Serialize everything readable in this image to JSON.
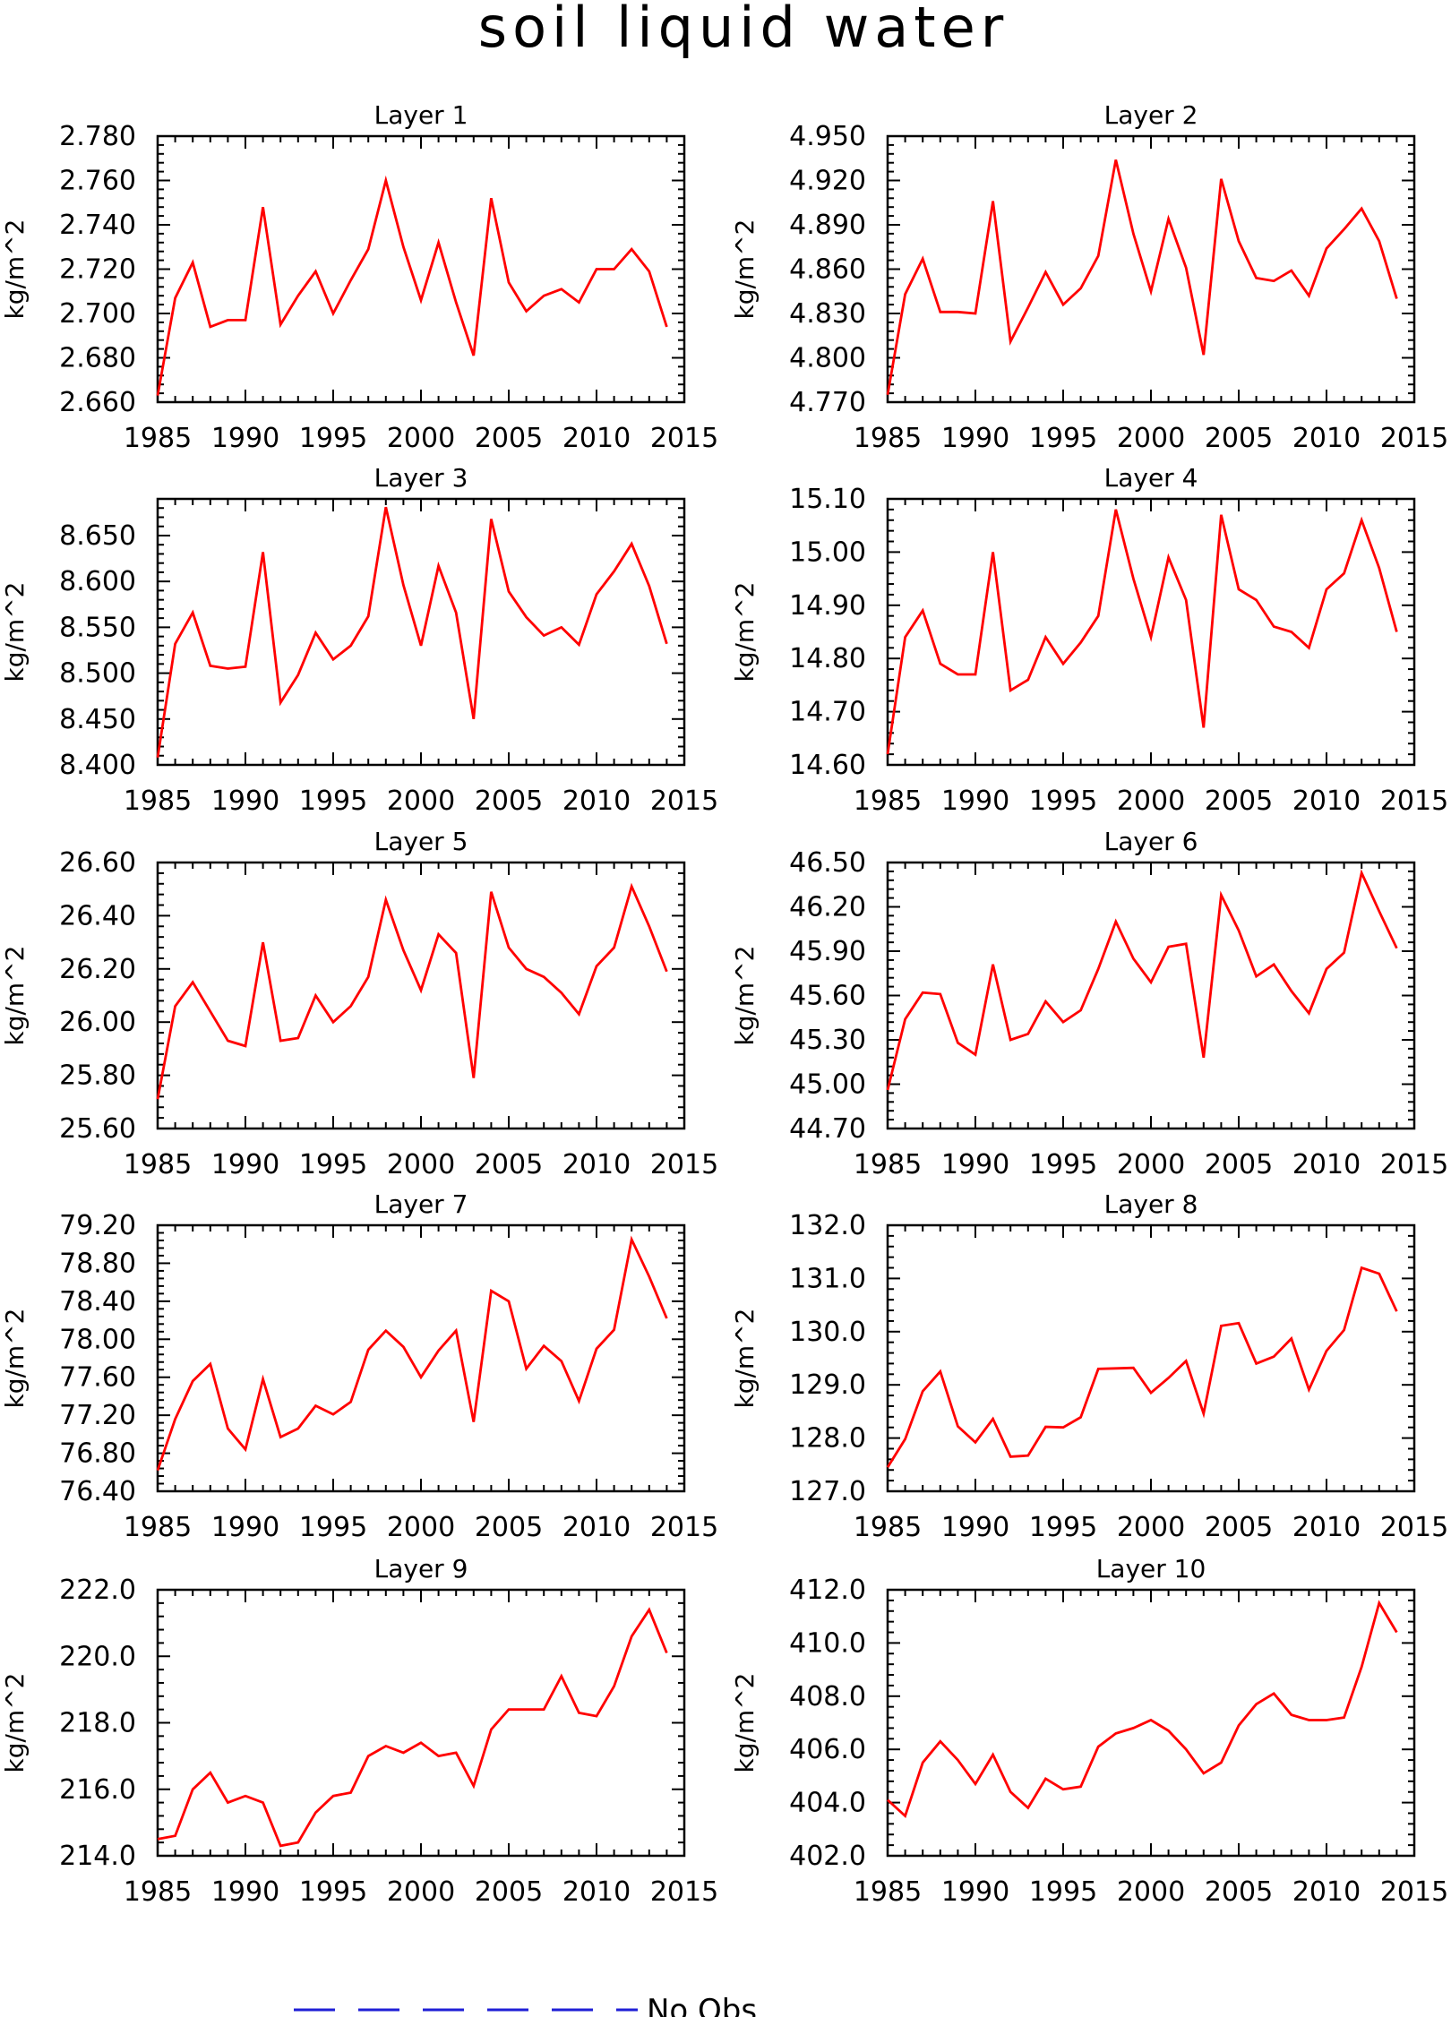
{
  "title": "soil liquid water",
  "legend": {
    "label": "No Obs",
    "color": "#1f1fd6"
  },
  "line_color": "#ff0000",
  "chart_data": [
    {
      "type": "line",
      "title": "Layer 1",
      "ylabel": "kg/m^2",
      "xlim": [
        1985,
        2015
      ],
      "x_ticks": [
        1985,
        1990,
        1995,
        2000,
        2005,
        2010,
        2015
      ],
      "ylim": [
        2.66,
        2.78
      ],
      "y_ticks": [
        "2.660",
        "2.680",
        "2.700",
        "2.720",
        "2.740",
        "2.760",
        "2.780"
      ],
      "x": [
        1985,
        1986,
        1987,
        1988,
        1989,
        1990,
        1991,
        1992,
        1993,
        1994,
        1995,
        1996,
        1997,
        1998,
        1999,
        2000,
        2001,
        2002,
        2003,
        2004,
        2005,
        2006,
        2007,
        2008,
        2009,
        2010,
        2011,
        2012,
        2013,
        2014
      ],
      "y": [
        2.663,
        2.707,
        2.723,
        2.694,
        2.697,
        2.697,
        2.748,
        2.695,
        2.708,
        2.719,
        2.7,
        2.715,
        2.729,
        2.76,
        2.73,
        2.706,
        2.732,
        2.705,
        2.681,
        2.752,
        2.714,
        2.701,
        2.708,
        2.711,
        2.705,
        2.72,
        2.72,
        2.729,
        2.719,
        2.694
      ]
    },
    {
      "type": "line",
      "title": "Layer 2",
      "ylabel": "kg/m^2",
      "xlim": [
        1985,
        2015
      ],
      "x_ticks": [
        1985,
        1990,
        1995,
        2000,
        2005,
        2010,
        2015
      ],
      "ylim": [
        4.77,
        4.95
      ],
      "y_ticks": [
        "4.770",
        "4.800",
        "4.830",
        "4.860",
        "4.890",
        "4.920",
        "4.950"
      ],
      "x": [
        1985,
        1986,
        1987,
        1988,
        1989,
        1990,
        1991,
        1992,
        1993,
        1994,
        1995,
        1996,
        1997,
        1998,
        1999,
        2000,
        2001,
        2002,
        2003,
        2004,
        2005,
        2006,
        2007,
        2008,
        2009,
        2010,
        2011,
        2012,
        2013,
        2014
      ],
      "y": [
        4.775,
        4.843,
        4.867,
        4.831,
        4.831,
        4.83,
        4.906,
        4.811,
        4.834,
        4.858,
        4.836,
        4.847,
        4.869,
        4.934,
        4.884,
        4.845,
        4.894,
        4.861,
        4.802,
        4.921,
        4.879,
        4.854,
        4.852,
        4.859,
        4.842,
        4.874,
        4.887,
        4.901,
        4.879,
        4.84
      ]
    },
    {
      "type": "line",
      "title": "Layer 3",
      "ylabel": "kg/m^2",
      "xlim": [
        1985,
        2015
      ],
      "x_ticks": [
        1985,
        1990,
        1995,
        2000,
        2005,
        2010,
        2015
      ],
      "ylim": [
        8.4,
        8.69
      ],
      "y_ticks": [
        "8.400",
        "8.450",
        "8.500",
        "8.550",
        "8.600",
        "8.650"
      ],
      "x": [
        1985,
        1986,
        1987,
        1988,
        1989,
        1990,
        1991,
        1992,
        1993,
        1994,
        1995,
        1996,
        1997,
        1998,
        1999,
        2000,
        2001,
        2002,
        2003,
        2004,
        2005,
        2006,
        2007,
        2008,
        2009,
        2010,
        2011,
        2012,
        2013,
        2014
      ],
      "y": [
        8.408,
        8.532,
        8.566,
        8.508,
        8.505,
        8.507,
        8.632,
        8.468,
        8.498,
        8.544,
        8.515,
        8.53,
        8.562,
        8.681,
        8.596,
        8.53,
        8.617,
        8.566,
        8.45,
        8.668,
        8.589,
        8.561,
        8.541,
        8.55,
        8.531,
        8.586,
        8.611,
        8.641,
        8.595,
        8.532
      ]
    },
    {
      "type": "line",
      "title": "Layer 4",
      "ylabel": "kg/m^2",
      "xlim": [
        1985,
        2015
      ],
      "x_ticks": [
        1985,
        1990,
        1995,
        2000,
        2005,
        2010,
        2015
      ],
      "ylim": [
        14.6,
        15.1
      ],
      "y_ticks": [
        "14.60",
        "14.70",
        "14.80",
        "14.90",
        "15.00",
        "15.10"
      ],
      "x": [
        1985,
        1986,
        1987,
        1988,
        1989,
        1990,
        1991,
        1992,
        1993,
        1994,
        1995,
        1996,
        1997,
        1998,
        1999,
        2000,
        2001,
        2002,
        2003,
        2004,
        2005,
        2006,
        2007,
        2008,
        2009,
        2010,
        2011,
        2012,
        2013,
        2014
      ],
      "y": [
        14.62,
        14.84,
        14.89,
        14.79,
        14.77,
        14.77,
        15.0,
        14.74,
        14.76,
        14.84,
        14.79,
        14.83,
        14.88,
        15.08,
        14.95,
        14.84,
        14.99,
        14.91,
        14.67,
        15.07,
        14.93,
        14.91,
        14.86,
        14.85,
        14.82,
        14.93,
        14.96,
        15.06,
        14.97,
        14.85
      ]
    },
    {
      "type": "line",
      "title": "Layer 5",
      "ylabel": "kg/m^2",
      "xlim": [
        1985,
        2015
      ],
      "x_ticks": [
        1985,
        1990,
        1995,
        2000,
        2005,
        2010,
        2015
      ],
      "ylim": [
        25.6,
        26.6
      ],
      "y_ticks": [
        "25.60",
        "25.80",
        "26.00",
        "26.20",
        "26.40",
        "26.60"
      ],
      "x": [
        1985,
        1986,
        1987,
        1988,
        1989,
        1990,
        1991,
        1992,
        1993,
        1994,
        1995,
        1996,
        1997,
        1998,
        1999,
        2000,
        2001,
        2002,
        2003,
        2004,
        2005,
        2006,
        2007,
        2008,
        2009,
        2010,
        2011,
        2012,
        2013,
        2014
      ],
      "y": [
        25.71,
        26.06,
        26.15,
        26.04,
        25.93,
        25.91,
        26.3,
        25.93,
        25.94,
        26.1,
        26.0,
        26.06,
        26.17,
        26.46,
        26.27,
        26.12,
        26.33,
        26.26,
        25.79,
        26.49,
        26.28,
        26.2,
        26.17,
        26.11,
        26.03,
        26.21,
        26.28,
        26.51,
        26.36,
        26.19
      ]
    },
    {
      "type": "line",
      "title": "Layer 6",
      "ylabel": "kg/m^2",
      "xlim": [
        1985,
        2015
      ],
      "x_ticks": [
        1985,
        1990,
        1995,
        2000,
        2005,
        2010,
        2015
      ],
      "ylim": [
        44.7,
        46.5
      ],
      "y_ticks": [
        "44.70",
        "45.00",
        "45.30",
        "45.60",
        "45.90",
        "46.20",
        "46.50"
      ],
      "x": [
        1985,
        1986,
        1987,
        1988,
        1989,
        1990,
        1991,
        1992,
        1993,
        1994,
        1995,
        1996,
        1997,
        1998,
        1999,
        2000,
        2001,
        2002,
        2003,
        2004,
        2005,
        2006,
        2007,
        2008,
        2009,
        2010,
        2011,
        2012,
        2013,
        2014
      ],
      "y": [
        44.96,
        45.44,
        45.62,
        45.61,
        45.28,
        45.2,
        45.81,
        45.3,
        45.34,
        45.56,
        45.42,
        45.5,
        45.78,
        46.1,
        45.85,
        45.69,
        45.93,
        45.95,
        45.18,
        46.28,
        46.04,
        45.73,
        45.81,
        45.63,
        45.48,
        45.78,
        45.89,
        46.43,
        46.17,
        45.92
      ]
    },
    {
      "type": "line",
      "title": "Layer 7",
      "ylabel": "kg/m^2",
      "xlim": [
        1985,
        2015
      ],
      "x_ticks": [
        1985,
        1990,
        1995,
        2000,
        2005,
        2010,
        2015
      ],
      "ylim": [
        76.4,
        79.2
      ],
      "y_ticks": [
        "76.40",
        "76.80",
        "77.20",
        "77.60",
        "78.00",
        "78.40",
        "78.80",
        "79.20"
      ],
      "x": [
        1985,
        1986,
        1987,
        1988,
        1989,
        1990,
        1991,
        1992,
        1993,
        1994,
        1995,
        1996,
        1997,
        1998,
        1999,
        2000,
        2001,
        2002,
        2003,
        2004,
        2005,
        2006,
        2007,
        2008,
        2009,
        2010,
        2011,
        2012,
        2013,
        2014
      ],
      "y": [
        76.62,
        77.16,
        77.56,
        77.74,
        77.06,
        76.84,
        77.58,
        76.97,
        77.06,
        77.3,
        77.21,
        77.34,
        77.89,
        78.09,
        77.92,
        77.6,
        77.88,
        78.09,
        77.13,
        78.51,
        78.4,
        77.69,
        77.93,
        77.77,
        77.35,
        77.9,
        78.1,
        79.05,
        78.66,
        78.22
      ]
    },
    {
      "type": "line",
      "title": "Layer 8",
      "ylabel": "kg/m^2",
      "xlim": [
        1985,
        2015
      ],
      "x_ticks": [
        1985,
        1990,
        1995,
        2000,
        2005,
        2010,
        2015
      ],
      "ylim": [
        127.0,
        132.0
      ],
      "y_ticks": [
        "127.0",
        "128.0",
        "129.0",
        "130.0",
        "131.0",
        "132.0"
      ],
      "x": [
        1985,
        1986,
        1987,
        1988,
        1989,
        1990,
        1991,
        1992,
        1993,
        1994,
        1995,
        1996,
        1997,
        1998,
        1999,
        2000,
        2001,
        2002,
        2003,
        2004,
        2005,
        2006,
        2007,
        2008,
        2009,
        2010,
        2011,
        2012,
        2013,
        2014
      ],
      "y": [
        127.45,
        127.98,
        128.88,
        129.25,
        128.22,
        127.92,
        128.36,
        127.65,
        127.67,
        128.21,
        128.2,
        128.39,
        129.3,
        129.31,
        129.32,
        128.85,
        129.13,
        129.45,
        128.46,
        130.11,
        130.16,
        129.4,
        129.53,
        129.87,
        128.91,
        129.64,
        130.03,
        131.2,
        131.09,
        130.38
      ]
    },
    {
      "type": "line",
      "title": "Layer 9",
      "ylabel": "kg/m^2",
      "xlim": [
        1985,
        2015
      ],
      "x_ticks": [
        1985,
        1990,
        1995,
        2000,
        2005,
        2010,
        2015
      ],
      "ylim": [
        214.0,
        222.0
      ],
      "y_ticks": [
        "214.0",
        "216.0",
        "218.0",
        "220.0",
        "222.0"
      ],
      "x": [
        1985,
        1986,
        1987,
        1988,
        1989,
        1990,
        1991,
        1992,
        1993,
        1994,
        1995,
        1996,
        1997,
        1998,
        1999,
        2000,
        2001,
        2002,
        2003,
        2004,
        2005,
        2006,
        2007,
        2008,
        2009,
        2010,
        2011,
        2012,
        2013,
        2014
      ],
      "y": [
        214.5,
        214.6,
        216.0,
        216.5,
        215.6,
        215.8,
        215.6,
        214.3,
        214.4,
        215.3,
        215.8,
        215.9,
        217.0,
        217.3,
        217.1,
        217.4,
        217.0,
        217.1,
        216.1,
        217.8,
        218.4,
        218.4,
        218.4,
        219.4,
        218.3,
        218.2,
        219.1,
        220.6,
        221.4,
        220.1
      ]
    },
    {
      "type": "line",
      "title": "Layer 10",
      "ylabel": "kg/m^2",
      "xlim": [
        1985,
        2015
      ],
      "x_ticks": [
        1985,
        1990,
        1995,
        2000,
        2005,
        2010,
        2015
      ],
      "ylim": [
        402.0,
        412.0
      ],
      "y_ticks": [
        "402.0",
        "404.0",
        "406.0",
        "408.0",
        "410.0",
        "412.0"
      ],
      "x": [
        1985,
        1986,
        1987,
        1988,
        1989,
        1990,
        1991,
        1992,
        1993,
        1994,
        1995,
        1996,
        1997,
        1998,
        1999,
        2000,
        2001,
        2002,
        2003,
        2004,
        2005,
        2006,
        2007,
        2008,
        2009,
        2010,
        2011,
        2012,
        2013,
        2014
      ],
      "y": [
        404.1,
        403.5,
        405.5,
        406.3,
        405.6,
        404.7,
        405.8,
        404.4,
        403.8,
        404.9,
        404.5,
        404.6,
        406.1,
        406.6,
        406.8,
        407.1,
        406.7,
        406.0,
        405.1,
        405.5,
        406.9,
        407.7,
        408.1,
        407.3,
        407.1,
        407.1,
        407.2,
        409.1,
        411.5,
        410.4
      ]
    }
  ]
}
